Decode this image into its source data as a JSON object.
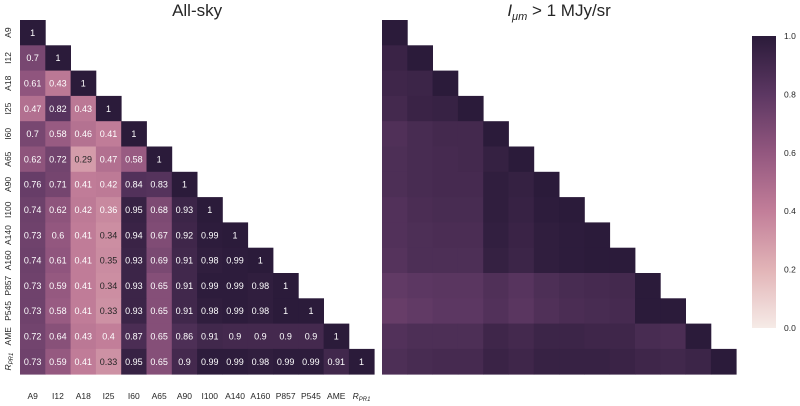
{
  "chart_data": [
    {
      "type": "heatmap",
      "title": "All-sky",
      "labels": [
        "A9",
        "I12",
        "A18",
        "I25",
        "I60",
        "A65",
        "A90",
        "I100",
        "A140",
        "A160",
        "P857",
        "P545",
        "AME",
        "R_PR1"
      ],
      "label_display": [
        "A9",
        "I12",
        "A18",
        "I25",
        "I60",
        "A65",
        "A90",
        "I100",
        "A140",
        "A160",
        "P857",
        "P545",
        "AME",
        "R"
      ],
      "label_subscript": {
        "R_PR1": "PR1"
      },
      "matrix": [
        [
          1
        ],
        [
          0.7,
          1
        ],
        [
          0.61,
          0.43,
          1
        ],
        [
          0.47,
          0.82,
          0.43,
          1
        ],
        [
          0.7,
          0.58,
          0.46,
          0.41,
          1
        ],
        [
          0.62,
          0.72,
          0.29,
          0.47,
          0.58,
          1
        ],
        [
          0.76,
          0.71,
          0.41,
          0.42,
          0.84,
          0.83,
          1
        ],
        [
          0.74,
          0.62,
          0.42,
          0.36,
          0.95,
          0.68,
          0.93,
          1
        ],
        [
          0.73,
          0.6,
          0.41,
          0.34,
          0.94,
          0.67,
          0.92,
          0.99,
          1
        ],
        [
          0.74,
          0.61,
          0.41,
          0.35,
          0.93,
          0.69,
          0.91,
          0.98,
          0.99,
          1
        ],
        [
          0.73,
          0.59,
          0.41,
          0.34,
          0.93,
          0.65,
          0.91,
          0.99,
          0.99,
          0.98,
          1
        ],
        [
          0.73,
          0.58,
          0.41,
          0.33,
          0.93,
          0.65,
          0.91,
          0.98,
          0.99,
          0.98,
          1,
          1
        ],
        [
          0.72,
          0.64,
          0.43,
          0.4,
          0.87,
          0.65,
          0.86,
          0.91,
          0.9,
          0.9,
          0.9,
          0.9,
          1
        ],
        [
          0.73,
          0.59,
          0.41,
          0.33,
          0.95,
          0.65,
          0.9,
          0.99,
          0.99,
          0.98,
          0.99,
          0.99,
          0.91,
          1
        ]
      ],
      "annotated": true
    },
    {
      "type": "heatmap",
      "title_prefix": "I",
      "title_subscript": "μm",
      "title_suffix": " > 1 MJy/sr",
      "labels": [
        "A9",
        "I12",
        "A18",
        "I25",
        "I60",
        "A65",
        "A90",
        "I100",
        "A140",
        "A160",
        "P857",
        "P545",
        "AME",
        "R_PR1"
      ],
      "matrix": [
        [
          1
        ],
        [
          0.94,
          1
        ],
        [
          0.92,
          0.93,
          1
        ],
        [
          0.9,
          0.94,
          0.95,
          1
        ],
        [
          0.85,
          0.88,
          0.9,
          0.9,
          1
        ],
        [
          0.86,
          0.88,
          0.89,
          0.9,
          0.96,
          1
        ],
        [
          0.86,
          0.88,
          0.89,
          0.89,
          0.98,
          0.96,
          1
        ],
        [
          0.84,
          0.87,
          0.88,
          0.88,
          0.98,
          0.95,
          0.99,
          1
        ],
        [
          0.84,
          0.86,
          0.87,
          0.87,
          0.97,
          0.94,
          0.98,
          0.99,
          1
        ],
        [
          0.83,
          0.86,
          0.86,
          0.86,
          0.96,
          0.93,
          0.98,
          0.99,
          1,
          1
        ],
        [
          0.78,
          0.8,
          0.81,
          0.81,
          0.85,
          0.82,
          0.86,
          0.88,
          0.89,
          0.9,
          1
        ],
        [
          0.76,
          0.78,
          0.8,
          0.8,
          0.84,
          0.81,
          0.85,
          0.87,
          0.88,
          0.89,
          1,
          1
        ],
        [
          0.84,
          0.86,
          0.86,
          0.86,
          0.92,
          0.9,
          0.93,
          0.93,
          0.92,
          0.92,
          0.88,
          0.87,
          1
        ],
        [
          0.86,
          0.88,
          0.89,
          0.89,
          0.94,
          0.92,
          0.95,
          0.95,
          0.95,
          0.94,
          0.92,
          0.91,
          0.93,
          1
        ]
      ],
      "annotated": false
    }
  ],
  "colorbar": {
    "min": 0.0,
    "max": 1.0,
    "ticks": [
      "0.0",
      "0.2",
      "0.4",
      "0.6",
      "0.8",
      "1.0"
    ],
    "colors": [
      "#f6ebe7",
      "#e2b4b7",
      "#c27e99",
      "#93577f",
      "#5c3762",
      "#2b1b3a"
    ]
  }
}
